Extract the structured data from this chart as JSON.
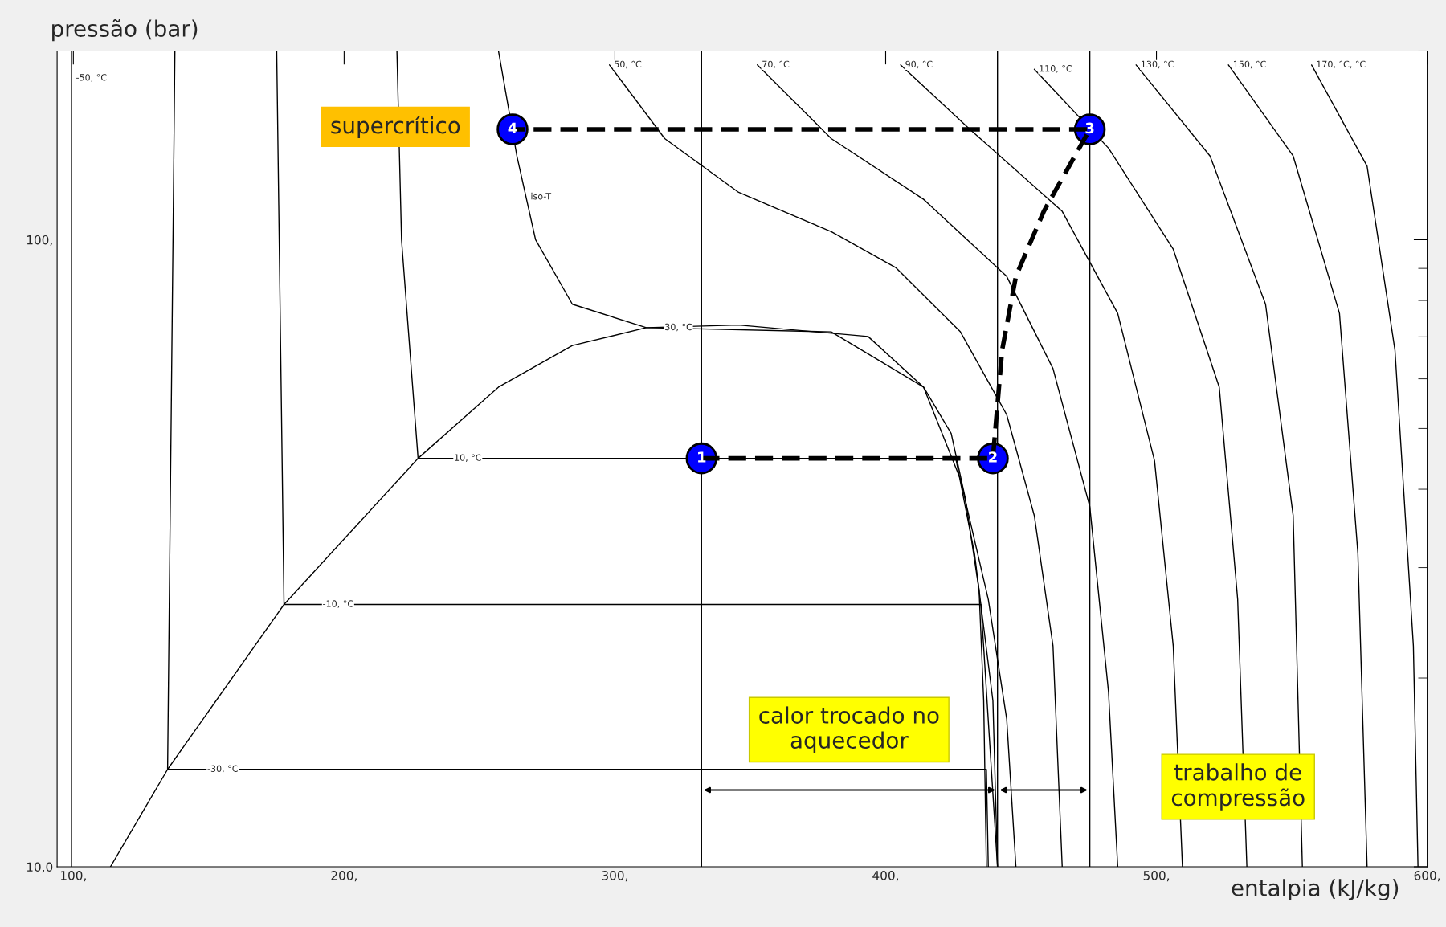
{
  "chart_data": {
    "type": "line",
    "xlabel": "entalpia (kJ/kg)",
    "ylabel": "pressão (bar)",
    "log": "y",
    "grid": false,
    "legend": false,
    "xlim": [
      94,
      600
    ],
    "ylim": [
      10,
      200
    ],
    "xticks": [
      {
        "value": 100,
        "label": "100,"
      },
      {
        "value": 200,
        "label": "200,"
      },
      {
        "value": 300,
        "label": "300,"
      },
      {
        "value": 400,
        "label": "400,"
      },
      {
        "value": 500,
        "label": "500,"
      },
      {
        "value": 600,
        "label": "600,"
      }
    ],
    "yticks": [
      {
        "value": 10,
        "label": "10,0"
      },
      {
        "value": 100,
        "label": "100,"
      }
    ],
    "series": [
      {
        "color": "#000000",
        "line_style": "solid",
        "x": [
          99.3,
          99.3,
          99.3
        ],
        "values": [
          200,
          181,
          10
        ]
      },
      {
        "type": "line",
        "color": "#000000",
        "line_style": "solid",
        "x": [
          113.7,
          134.8,
          177.8,
          227.3,
          257.0,
          284.3,
          311.6,
          345.7,
          393.5,
          414,
          424.2,
          429.4,
          434.5,
          436.2,
          437.2
        ],
        "values": [
          10,
          14.3,
          26.2,
          44.8,
          58.2,
          67.8,
          72.4,
          73.1,
          70.1,
          58.2,
          49.1,
          38.7,
          27.6,
          18.4,
          10
        ]
      },
      {
        "type": "line",
        "color": "#000000",
        "line_style": "solid",
        "x": [
          137.5,
          134.8,
          437.2,
          437.9
        ],
        "values": [
          200,
          14.3,
          14.3,
          10
        ]
      },
      {
        "type": "line",
        "color": "#000000",
        "line_style": "solid",
        "x": [
          175.1,
          177.8,
          435.2,
          441.3
        ],
        "values": [
          200,
          26.2,
          26.2,
          10
        ]
      },
      {
        "type": "line",
        "color": "#000000",
        "line_style": "solid",
        "x": [
          219.5,
          221.2,
          227.3,
          425.9,
          432.8,
          439.6,
          441.3
        ],
        "values": [
          200,
          100,
          44.8,
          44.8,
          31.6,
          18.4,
          10
        ]
      },
      {
        "type": "line",
        "color": "#000000",
        "line_style": "solid",
        "x": [
          257.0,
          263.8,
          270.7,
          284.3,
          311.6,
          379.9,
          414,
          427.6,
          437.9,
          444.7,
          448.1
        ],
        "values": [
          200,
          136,
          100,
          78.9,
          72.4,
          71.3,
          58.2,
          41.5,
          26.7,
          17.2,
          10
        ]
      },
      {
        "type": "line",
        "color": "#000000",
        "line_style": "solid",
        "x": [
          298,
          318.4,
          345.7,
          379.9,
          403.7,
          427.6,
          444.7,
          454.9,
          461.8,
          465.2
        ],
        "values": [
          190,
          145,
          119,
          103,
          90.3,
          71.3,
          52.6,
          36.3,
          22.5,
          10
        ]
      },
      {
        "type": "line",
        "color": "#000000",
        "line_style": "solid",
        "x": [
          352.6,
          379.9,
          414,
          444.7,
          461.8,
          475.4,
          482.3,
          485.7
        ],
        "values": [
          190,
          145,
          116,
          87.4,
          62.3,
          37.5,
          19.0,
          10
        ]
      },
      {
        "type": "line",
        "color": "#000000",
        "line_style": "solid",
        "x": [
          405.5,
          431.1,
          465.2,
          485.7,
          499.3,
          506.2,
          509.6
        ],
        "values": [
          190,
          150,
          111,
          76.3,
          44.4,
          22.5,
          10
        ]
      },
      {
        "type": "line",
        "color": "#000000",
        "line_style": "solid",
        "x": [
          454.9,
          482.3,
          506.2,
          523.2,
          530.0,
          533.4
        ],
        "values": [
          187,
          140,
          96.6,
          58.2,
          26.7,
          10
        ]
      },
      {
        "type": "line",
        "color": "#000000",
        "line_style": "solid",
        "x": [
          492.5,
          519.8,
          540.3,
          550.5,
          553.9
        ],
        "values": [
          190,
          136,
          78.9,
          36.3,
          10
        ]
      },
      {
        "type": "line",
        "color": "#000000",
        "line_style": "solid",
        "x": [
          526.6,
          550.5,
          567.6,
          574.4,
          577.8
        ],
        "values": [
          190,
          136,
          76.3,
          31.6,
          10
        ]
      },
      {
        "type": "line",
        "color": "#000000",
        "line_style": "solid",
        "x": [
          557.3,
          577.8,
          588.1,
          594.9,
          596.6
        ],
        "values": [
          190,
          131,
          66.6,
          22.5,
          10
        ]
      },
      {
        "type": "line",
        "color": "#000000",
        "line_style": "dashed",
        "x": [
          332,
          439.6,
          443.0,
          448.1,
          458.4,
          475.4,
          262.2
        ],
        "values": [
          44.8,
          44.8,
          66.6,
          87.4,
          111,
          150,
          150
        ]
      },
      {
        "type": "scatter",
        "color": "#0000ff",
        "marker": "circle",
        "x": [
          332,
          439.6,
          475.4,
          262.2
        ],
        "values": [
          44.8,
          44.8,
          150,
          150
        ]
      }
    ],
    "ref_lines": [
      {
        "axis": "x",
        "value": 332,
        "color": "#000000"
      },
      {
        "axis": "x",
        "value": 441.3,
        "color": "#000000"
      },
      {
        "axis": "x",
        "value": 475.4,
        "color": "#000000"
      }
    ],
    "annotations": [
      {
        "text": "1",
        "x": 332,
        "y": 44.8
      },
      {
        "text": "2",
        "x": 439.6,
        "y": 44.8
      },
      {
        "text": "3",
        "x": 475.4,
        "y": 150
      },
      {
        "text": "4",
        "x": 262.2,
        "y": 150
      },
      {
        "text": "-50, °C",
        "x": 99.3,
        "y": 181
      },
      {
        "text": "-30, °C",
        "x": 147.8,
        "y": 14.3
      },
      {
        "text": "-10, °C",
        "x": 190.4,
        "y": 26.2
      },
      {
        "text": "10, °C",
        "x": 238.9,
        "y": 44.8
      },
      {
        "text": "30, °C",
        "x": 316.7,
        "y": 72.4
      },
      {
        "text": "50, °C",
        "x": 298,
        "y": 190
      },
      {
        "text": "70, °C",
        "x": 352.6,
        "y": 190
      },
      {
        "text": "90, °C",
        "x": 405.5,
        "y": 190
      },
      {
        "text": "110, °C",
        "x": 454.9,
        "y": 187
      },
      {
        "text": "130, °C",
        "x": 492.5,
        "y": 190
      },
      {
        "text": "150, °C",
        "x": 526.6,
        "y": 190
      },
      {
        "text": "170, °C, °C",
        "x": 557.3,
        "y": 190
      },
      {
        "text": "iso-T",
        "x": 267.2,
        "y": 117
      },
      "supercrítico",
      "calor trocado no aquecedor",
      "trabalho de compressão"
    ]
  }
}
